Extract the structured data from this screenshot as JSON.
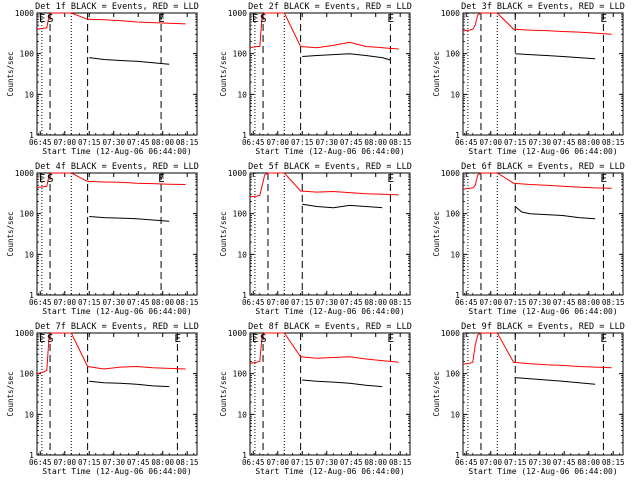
{
  "chart_data": [
    {
      "type": "line",
      "title": "Det 1f BLACK = Events, RED = LLD",
      "xlabel": "Start Time (12-Aug-06 06:44:00)",
      "ylabel": "Counts/sec",
      "ylim": [
        1,
        1000
      ],
      "y_scale": "log",
      "y_ticks": [
        "1",
        "10",
        "100",
        "1000"
      ],
      "x_range_min": [
        -1,
        97
      ],
      "x_ticks_min": [
        1,
        16,
        31,
        46,
        61,
        76,
        91
      ],
      "x_tick_labels": [
        "06:45",
        "07:00",
        "07:15",
        "07:30",
        "07:45",
        "08:00",
        "08:15"
      ],
      "markers": [
        {
          "label": "E",
          "min": 2
        },
        {
          "label": "S",
          "min": 7
        },
        {
          "label": "E",
          "min": 75
        }
      ],
      "dashed_lines_min": [
        7,
        30,
        75
      ],
      "dotted_lines_min": [
        2,
        20
      ],
      "series": [
        {
          "name": "LLD",
          "color": "#ff0000",
          "x": [
            -1,
            3,
            5,
            6.5,
            8,
            10,
            20,
            30,
            40,
            50,
            60,
            70,
            80,
            90
          ],
          "y": [
            400,
            420,
            430,
            900,
            1000,
            1000,
            1000,
            700,
            680,
            650,
            600,
            580,
            560,
            540
          ]
        },
        {
          "name": "Events",
          "color": "#000000",
          "x": [
            31,
            40,
            50,
            60,
            70,
            80
          ],
          "y": [
            80,
            72,
            68,
            65,
            60,
            55
          ]
        }
      ]
    },
    {
      "type": "line",
      "title": "Det 2f BLACK = Events, RED = LLD",
      "xlabel": "Start Time (12-Aug-06 06:44:00)",
      "ylabel": "Counts/sec",
      "ylim": [
        1,
        1000
      ],
      "y_scale": "log",
      "y_ticks": [
        "1",
        "10",
        "100",
        "1000"
      ],
      "x_range_min": [
        -1,
        97
      ],
      "x_ticks_min": [
        1,
        16,
        31,
        46,
        61,
        76,
        91
      ],
      "x_tick_labels": [
        "06:45",
        "07:00",
        "07:15",
        "07:30",
        "07:45",
        "08:00",
        "08:15"
      ],
      "markers": [
        {
          "label": "E",
          "min": 2
        },
        {
          "label": "S",
          "min": 7
        },
        {
          "label": "E",
          "min": 85
        }
      ],
      "dashed_lines_min": [
        7,
        30,
        85
      ],
      "dotted_lines_min": [
        2,
        20
      ],
      "series": [
        {
          "name": "LLD",
          "color": "#ff0000",
          "x": [
            -1,
            3,
            5,
            6.5,
            8,
            10,
            20,
            30,
            40,
            50,
            60,
            70,
            80,
            90
          ],
          "y": [
            140,
            150,
            150,
            900,
            1000,
            1000,
            1000,
            150,
            140,
            160,
            190,
            150,
            140,
            130
          ]
        },
        {
          "name": "Events",
          "color": "#000000",
          "x": [
            31,
            40,
            50,
            60,
            70,
            80,
            85
          ],
          "y": [
            85,
            90,
            95,
            100,
            90,
            80,
            70
          ]
        }
      ]
    },
    {
      "type": "line",
      "title": "Det 3f BLACK = Events, RED = LLD",
      "xlabel": "Start Time (12-Aug-06 06:44:00)",
      "ylabel": "Counts/sec",
      "ylim": [
        1,
        1000
      ],
      "y_scale": "log",
      "y_ticks": [
        "1",
        "10",
        "100",
        "1000"
      ],
      "x_range_min": [
        -1,
        97
      ],
      "x_ticks_min": [
        1,
        16,
        31,
        46,
        61,
        76,
        91
      ],
      "x_tick_labels": [
        "06:45",
        "07:00",
        "07:15",
        "07:30",
        "07:45",
        "08:00",
        "08:15"
      ],
      "markers": [
        {
          "label": "E",
          "min": 85
        }
      ],
      "dashed_lines_min": [
        10,
        31,
        85
      ],
      "dotted_lines_min": [
        2,
        20
      ],
      "series": [
        {
          "name": "LLD",
          "color": "#ff0000",
          "x": [
            -1,
            3,
            5,
            6.5,
            8,
            10,
            20,
            30,
            40,
            50,
            60,
            70,
            80,
            90
          ],
          "y": [
            360,
            380,
            400,
            500,
            900,
            1000,
            1000,
            400,
            380,
            370,
            350,
            340,
            320,
            300
          ]
        },
        {
          "name": "Events",
          "color": "#000000",
          "x": [
            31,
            40,
            50,
            60,
            70,
            80
          ],
          "y": [
            100,
            95,
            90,
            85,
            80,
            75
          ]
        }
      ]
    },
    {
      "type": "line",
      "title": "Det 4f BLACK = Events, RED = LLD",
      "xlabel": "Start Time (12-Aug-06 06:44:00)",
      "ylabel": "Counts/sec",
      "ylim": [
        1,
        1000
      ],
      "y_scale": "log",
      "y_ticks": [
        "1",
        "10",
        "100",
        "1000"
      ],
      "x_range_min": [
        -1,
        97
      ],
      "x_ticks_min": [
        1,
        16,
        31,
        46,
        61,
        76,
        91
      ],
      "x_tick_labels": [
        "06:45",
        "07:00",
        "07:15",
        "07:30",
        "07:45",
        "08:00",
        "08:15"
      ],
      "markers": [
        {
          "label": "E",
          "min": 2
        },
        {
          "label": "S",
          "min": 7
        },
        {
          "label": "E",
          "min": 75
        }
      ],
      "dashed_lines_min": [
        7,
        30,
        75
      ],
      "dotted_lines_min": [
        2,
        20
      ],
      "series": [
        {
          "name": "LLD",
          "color": "#ff0000",
          "x": [
            -1,
            3,
            5,
            6.5,
            8,
            10,
            20,
            30,
            40,
            50,
            60,
            70,
            80,
            90
          ],
          "y": [
            440,
            460,
            470,
            900,
            1000,
            1000,
            1000,
            620,
            600,
            590,
            560,
            550,
            530,
            520
          ]
        },
        {
          "name": "Events",
          "color": "#000000",
          "x": [
            31,
            40,
            50,
            60,
            70,
            80
          ],
          "y": [
            85,
            80,
            78,
            75,
            70,
            65
          ]
        }
      ]
    },
    {
      "type": "line",
      "title": "Det 5f BLACK = Events, RED = LLD",
      "xlabel": "Start Time (12-Aug-06 06:44:00)",
      "ylabel": "Counts/sec",
      "ylim": [
        1,
        1000
      ],
      "y_scale": "log",
      "y_ticks": [
        "1",
        "10",
        "100",
        "1000"
      ],
      "x_range_min": [
        -1,
        97
      ],
      "x_ticks_min": [
        1,
        16,
        31,
        46,
        61,
        76,
        91
      ],
      "x_tick_labels": [
        "06:45",
        "07:00",
        "07:15",
        "07:30",
        "07:45",
        "08:00",
        "08:15"
      ],
      "markers": [
        {
          "label": "E",
          "min": 85
        }
      ],
      "dashed_lines_min": [
        10,
        31,
        85
      ],
      "dotted_lines_min": [
        2,
        20
      ],
      "series": [
        {
          "name": "LLD",
          "color": "#ff0000",
          "x": [
            -1,
            3,
            5,
            6.5,
            8,
            10,
            20,
            30,
            40,
            50,
            60,
            70,
            80,
            90
          ],
          "y": [
            260,
            270,
            280,
            500,
            900,
            1000,
            1000,
            360,
            340,
            350,
            330,
            310,
            300,
            290
          ]
        },
        {
          "name": "Events",
          "color": "#000000",
          "x": [
            31,
            40,
            50,
            60,
            70,
            80
          ],
          "y": [
            170,
            150,
            140,
            160,
            150,
            140
          ]
        }
      ]
    },
    {
      "type": "line",
      "title": "Det 6f BLACK = Events, RED = LLD",
      "xlabel": "Start Time (12-Aug-06 06:44:00)",
      "ylabel": "Counts/sec",
      "ylim": [
        1,
        1000
      ],
      "y_scale": "log",
      "y_ticks": [
        "1",
        "10",
        "100",
        "1000"
      ],
      "x_range_min": [
        -1,
        97
      ],
      "x_ticks_min": [
        1,
        16,
        31,
        46,
        61,
        76,
        91
      ],
      "x_tick_labels": [
        "06:45",
        "07:00",
        "07:15",
        "07:30",
        "07:45",
        "08:00",
        "08:15"
      ],
      "markers": [
        {
          "label": "E",
          "min": 85
        }
      ],
      "dashed_lines_min": [
        10,
        31,
        85
      ],
      "dotted_lines_min": [
        2,
        20
      ],
      "series": [
        {
          "name": "LLD",
          "color": "#ff0000",
          "x": [
            -1,
            3,
            5,
            6.5,
            8,
            10,
            20,
            30,
            40,
            50,
            60,
            70,
            80,
            90
          ],
          "y": [
            400,
            420,
            430,
            500,
            900,
            1000,
            1000,
            560,
            520,
            500,
            470,
            450,
            430,
            420
          ]
        },
        {
          "name": "Events",
          "color": "#000000",
          "x": [
            31,
            35,
            40,
            50,
            60,
            70,
            80
          ],
          "y": [
            150,
            110,
            100,
            95,
            90,
            80,
            75
          ]
        }
      ]
    },
    {
      "type": "line",
      "title": "Det 7f BLACK = Events, RED = LLD",
      "xlabel": "Start Time (12-Aug-06 06:44:00)",
      "ylabel": "Counts/sec",
      "ylim": [
        1,
        1000
      ],
      "y_scale": "log",
      "y_ticks": [
        "1",
        "10",
        "100",
        "1000"
      ],
      "x_range_min": [
        -1,
        97
      ],
      "x_ticks_min": [
        1,
        16,
        31,
        46,
        61,
        76,
        91
      ],
      "x_tick_labels": [
        "06:45",
        "07:00",
        "07:15",
        "07:30",
        "07:45",
        "08:00",
        "08:15"
      ],
      "markers": [
        {
          "label": "E",
          "min": 2
        },
        {
          "label": "S",
          "min": 7
        },
        {
          "label": "E",
          "min": 85
        }
      ],
      "dashed_lines_min": [
        7,
        30,
        85
      ],
      "dotted_lines_min": [
        2,
        20
      ],
      "series": [
        {
          "name": "LLD",
          "color": "#ff0000",
          "x": [
            -1,
            3,
            5,
            6.5,
            8,
            10,
            20,
            30,
            40,
            50,
            60,
            70,
            80,
            90
          ],
          "y": [
            100,
            110,
            120,
            900,
            1000,
            1000,
            1000,
            150,
            130,
            145,
            150,
            140,
            135,
            130
          ]
        },
        {
          "name": "Events",
          "color": "#000000",
          "x": [
            31,
            40,
            50,
            60,
            70,
            80
          ],
          "y": [
            65,
            60,
            58,
            55,
            50,
            48
          ]
        }
      ]
    },
    {
      "type": "line",
      "title": "Det 8f BLACK = Events, RED = LLD",
      "xlabel": "Start Time (12-Aug-06 06:44:00)",
      "ylabel": "Counts/sec",
      "ylim": [
        1,
        1000
      ],
      "y_scale": "log",
      "y_ticks": [
        "1",
        "10",
        "100",
        "1000"
      ],
      "x_range_min": [
        -1,
        97
      ],
      "x_ticks_min": [
        1,
        16,
        31,
        46,
        61,
        76,
        91
      ],
      "x_tick_labels": [
        "06:45",
        "07:00",
        "07:15",
        "07:30",
        "07:45",
        "08:00",
        "08:15"
      ],
      "markers": [
        {
          "label": "E",
          "min": 2
        },
        {
          "label": "S",
          "min": 7
        },
        {
          "label": "E",
          "min": 85
        }
      ],
      "dashed_lines_min": [
        7,
        30,
        85
      ],
      "dotted_lines_min": [
        2,
        20
      ],
      "series": [
        {
          "name": "LLD",
          "color": "#ff0000",
          "x": [
            -1,
            3,
            5,
            6.5,
            8,
            10,
            20,
            30,
            40,
            50,
            60,
            70,
            80,
            90
          ],
          "y": [
            180,
            190,
            200,
            900,
            1000,
            1000,
            1000,
            260,
            240,
            250,
            260,
            230,
            210,
            190
          ]
        },
        {
          "name": "Events",
          "color": "#000000",
          "x": [
            31,
            40,
            50,
            60,
            70,
            80
          ],
          "y": [
            70,
            65,
            62,
            58,
            52,
            48
          ]
        }
      ]
    },
    {
      "type": "line",
      "title": "Det 9f BLACK = Events, RED = LLD",
      "xlabel": "Start Time (12-Aug-06 06:44:00)",
      "ylabel": "Counts/sec",
      "ylim": [
        1,
        1000
      ],
      "y_scale": "log",
      "y_ticks": [
        "1",
        "10",
        "100",
        "1000"
      ],
      "x_range_min": [
        -1,
        97
      ],
      "x_ticks_min": [
        1,
        16,
        31,
        46,
        61,
        76,
        91
      ],
      "x_tick_labels": [
        "06:45",
        "07:00",
        "07:15",
        "07:30",
        "07:45",
        "08:00",
        "08:15"
      ],
      "markers": [
        {
          "label": "E",
          "min": 85
        }
      ],
      "dashed_lines_min": [
        10,
        31,
        85
      ],
      "dotted_lines_min": [
        2,
        20
      ],
      "series": [
        {
          "name": "LLD",
          "color": "#ff0000",
          "x": [
            -1,
            3,
            5,
            6.5,
            8,
            10,
            20,
            30,
            40,
            50,
            60,
            70,
            80,
            90
          ],
          "y": [
            170,
            180,
            190,
            500,
            900,
            1000,
            1000,
            190,
            175,
            165,
            160,
            150,
            145,
            140
          ]
        },
        {
          "name": "Events",
          "color": "#000000",
          "x": [
            31,
            40,
            50,
            60,
            70,
            80
          ],
          "y": [
            80,
            75,
            70,
            65,
            60,
            55
          ]
        }
      ]
    }
  ]
}
